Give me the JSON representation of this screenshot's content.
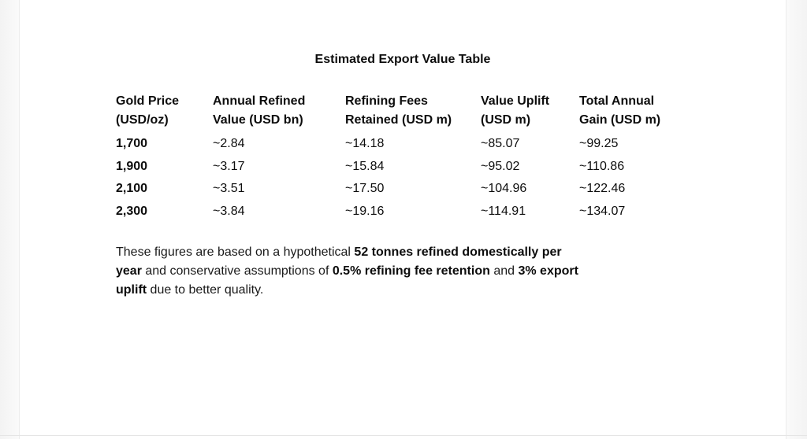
{
  "colors": {
    "text": "#0d0d0d",
    "background": "#ffffff",
    "gutter": "#f3f3f3",
    "divider": "#e5e5e5"
  },
  "table": {
    "title": "Estimated Export Value Table",
    "columns": [
      {
        "label": "Gold Price (USD/oz)",
        "lines": [
          "Gold Price",
          "(USD/oz)"
        ]
      },
      {
        "label": "Annual Refined Value (USD bn)",
        "lines": [
          "Annual Refined",
          "Value (USD bn)"
        ]
      },
      {
        "label": "Refining Fees Retained (USD m)",
        "lines": [
          "Refining Fees",
          "Retained (USD m)"
        ]
      },
      {
        "label": "Value Uplift (USD m)",
        "lines": [
          "Value Uplift",
          "(USD m)"
        ]
      },
      {
        "label": "Total Annual Gain (USD m)",
        "lines": [
          "Total Annual",
          "Gain (USD m)"
        ]
      }
    ],
    "rows": [
      [
        "1,700",
        "~2.84",
        "~14.18",
        "~85.07",
        "~99.25"
      ],
      [
        "1,900",
        "~3.17",
        "~15.84",
        "~95.02",
        "~110.86"
      ],
      [
        "2,100",
        "~3.51",
        "~17.50",
        "~104.96",
        "~122.46"
      ],
      [
        "2,300",
        "~3.84",
        "~19.16",
        "~114.91",
        "~134.07"
      ]
    ]
  },
  "note": {
    "lines": [
      [
        {
          "t": "These figures are based on a hypothetical ",
          "b": false
        },
        {
          "t": "52 tonnes refined domestically per",
          "b": true
        }
      ],
      [
        {
          "t": "year",
          "b": true
        },
        {
          "t": " and conservative assumptions of ",
          "b": false
        },
        {
          "t": "0.5% refining fee retention",
          "b": true
        },
        {
          "t": " and ",
          "b": false
        },
        {
          "t": "3% export",
          "b": true
        }
      ],
      [
        {
          "t": "uplift",
          "b": true
        },
        {
          "t": " due to better quality.",
          "b": false
        }
      ]
    ]
  }
}
